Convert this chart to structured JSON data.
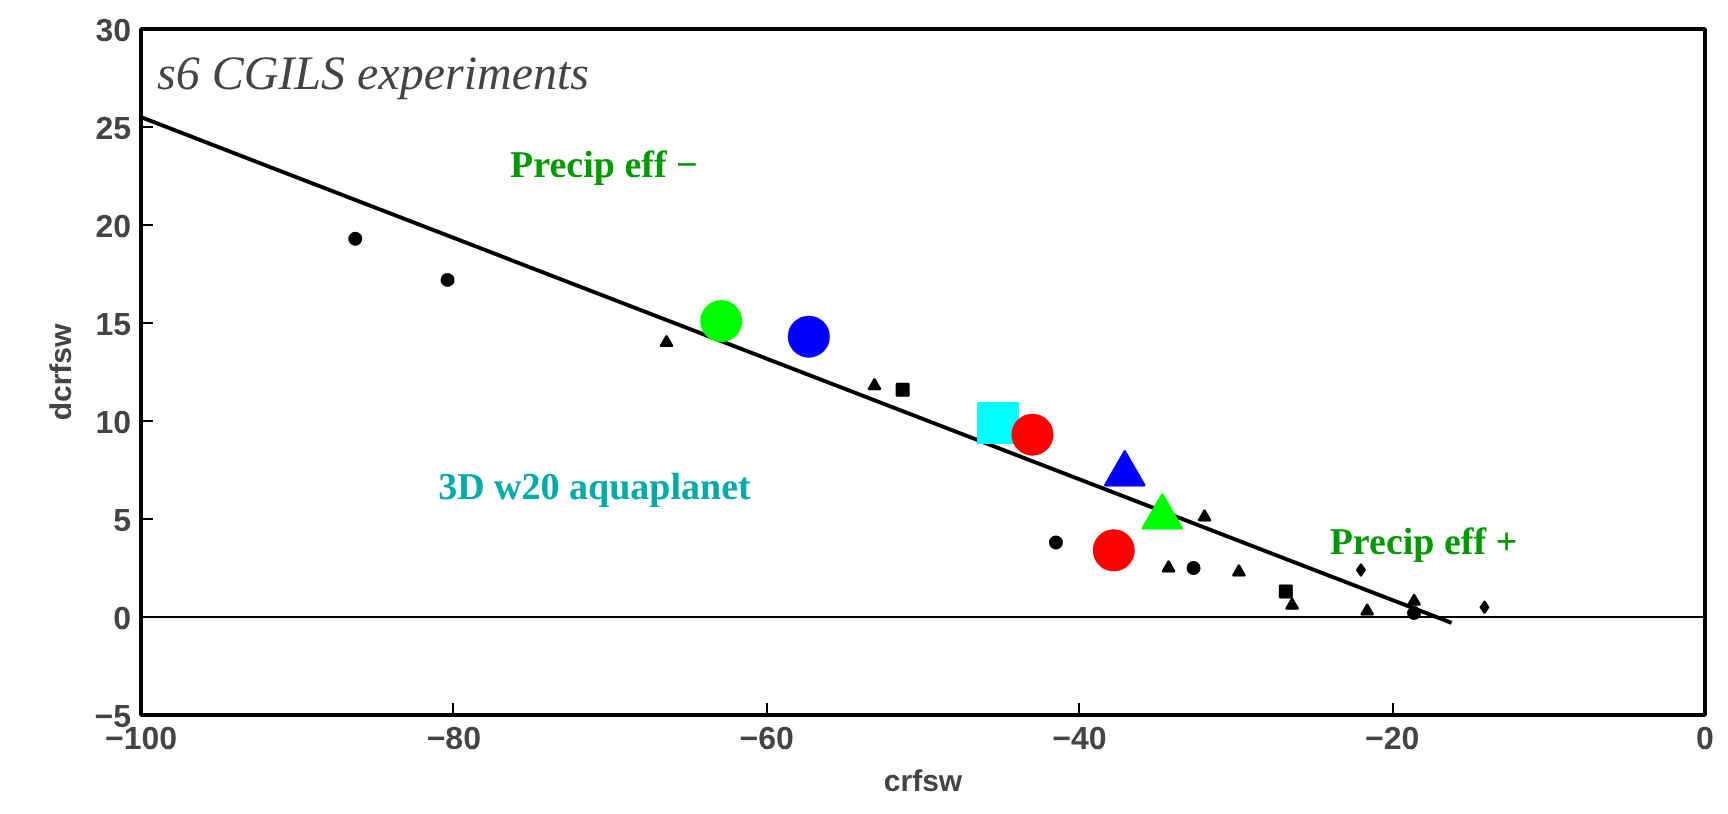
{
  "chart_data": {
    "type": "scatter",
    "title": "s6 CGILS experiments",
    "xlabel": "crfsw",
    "ylabel": "dcrfsw",
    "xlim": [
      -100,
      0
    ],
    "xticks": [
      -100,
      -80,
      -60,
      -40,
      -20,
      0
    ],
    "ylim": [
      -5,
      30
    ],
    "yticks": [
      -5,
      0,
      5,
      10,
      15,
      20,
      25,
      30
    ],
    "grid": false,
    "series": [
      {
        "type": "line",
        "color": "#000000",
        "marker": "none",
        "x": [
          -100,
          -16.2
        ],
        "values": [
          25.5,
          -0.3
        ]
      },
      {
        "color": "#000000",
        "marker": "circle",
        "x": [
          -86.3,
          -80.4,
          -32.7
        ],
        "values": [
          19.3,
          17.2,
          2.5
        ]
      },
      {
        "color": "#000000",
        "marker": "triangle",
        "x": [
          -66.4,
          -53.1,
          -34.3,
          -32.0,
          -29.8
        ],
        "values": [
          14.0,
          11.8,
          2.5,
          5.1,
          2.3
        ]
      },
      {
        "color": "#000000",
        "marker": "square",
        "x": [
          -51.3,
          -26.8
        ],
        "values": [
          11.6,
          1.3
        ]
      },
      {
        "color": "#000000",
        "marker": "diamond",
        "x": [
          -22.0,
          -14.1
        ],
        "values": [
          2.4,
          0.5
        ]
      },
      {
        "color": "#000000",
        "marker": "triangle",
        "x": [
          -26.4,
          -21.6,
          -18.6
        ],
        "values": [
          0.6,
          0.3,
          0.8
        ]
      },
      {
        "color": "#000000",
        "marker": "circle",
        "x": [
          -41.5,
          -18.6
        ],
        "values": [
          3.8,
          0.2
        ]
      },
      {
        "color": "#00ff00",
        "marker": "circle",
        "x": [
          -62.9
        ],
        "values": [
          15.1
        ]
      },
      {
        "color": "#0000ff",
        "marker": "circle",
        "x": [
          -57.3
        ],
        "values": [
          14.3
        ]
      },
      {
        "color": "#00ffff",
        "marker": "square",
        "x": [
          -45.2
        ],
        "values": [
          9.9
        ]
      },
      {
        "color": "#ff0000",
        "marker": "circle",
        "x": [
          -43.0,
          -37.8
        ],
        "values": [
          9.3,
          3.4
        ]
      },
      {
        "color": "#0000ff",
        "marker": "triangle",
        "x": [
          -37.1
        ],
        "values": [
          7.3
        ]
      },
      {
        "color": "#00ff00",
        "marker": "triangle",
        "x": [
          -34.7
        ],
        "values": [
          5.1
        ]
      }
    ],
    "ref_lines": [
      {
        "axis": "y",
        "value": 0,
        "color": "#000000"
      }
    ],
    "annotations": [
      "Precip eff −",
      "3D w20 aquaplanet",
      "Precip eff +"
    ]
  }
}
